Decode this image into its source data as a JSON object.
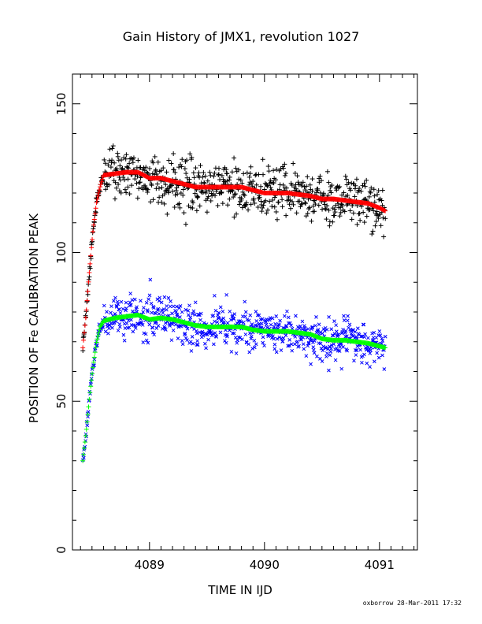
{
  "chart_data": {
    "type": "scatter",
    "title": "Gain History of JMX1, revolution 1027",
    "xlabel": "TIME IN IJD",
    "ylabel": "POSITION OF Fe CALIBRATION PEAK",
    "xlim": [
      4088.33,
      4091.33
    ],
    "ylim": [
      0,
      160
    ],
    "xticks": [
      4089,
      4090,
      4091
    ],
    "xtick_labels": [
      "4089",
      "4090",
      "4091"
    ],
    "yticks": [
      0,
      50,
      100,
      150
    ],
    "ytick_labels": [
      "0",
      "50",
      "100",
      "150"
    ],
    "grid": false,
    "credit": "oxborrow 28-Mar-2011 17:32",
    "series": [
      {
        "marker": "+",
        "color": "#000000",
        "description_role": "upper peak data",
        "trend": [
          [
            4088.42,
            68
          ],
          [
            4088.45,
            80
          ],
          [
            4088.48,
            95
          ],
          [
            4088.51,
            108
          ],
          [
            4088.54,
            117
          ],
          [
            4088.57,
            122
          ],
          [
            4088.6,
            126
          ],
          [
            4088.7,
            126.5
          ],
          [
            4088.8,
            127
          ],
          [
            4088.9,
            127
          ],
          [
            4089.0,
            125
          ],
          [
            4089.1,
            125
          ],
          [
            4089.2,
            124
          ],
          [
            4089.3,
            123
          ],
          [
            4089.4,
            122
          ],
          [
            4089.5,
            122
          ],
          [
            4089.6,
            122
          ],
          [
            4089.7,
            122
          ],
          [
            4089.8,
            122
          ],
          [
            4089.9,
            121
          ],
          [
            4090.0,
            120
          ],
          [
            4090.1,
            120
          ],
          [
            4090.2,
            120
          ],
          [
            4090.3,
            119.5
          ],
          [
            4090.4,
            119
          ],
          [
            4090.5,
            118
          ],
          [
            4090.6,
            118
          ],
          [
            4090.7,
            117.5
          ],
          [
            4090.8,
            117
          ],
          [
            4090.9,
            116.5
          ],
          [
            4091.0,
            115
          ],
          [
            4091.05,
            114
          ]
        ],
        "scatter_sd": 4
      },
      {
        "marker": "+",
        "color": "#ff0000",
        "description_role": "upper peak fit",
        "points": [
          [
            4088.42,
            68
          ],
          [
            4088.45,
            80
          ],
          [
            4088.48,
            95
          ],
          [
            4088.51,
            108
          ],
          [
            4088.54,
            117
          ],
          [
            4088.57,
            122
          ],
          [
            4088.6,
            126
          ],
          [
            4088.7,
            126.5
          ],
          [
            4088.8,
            127
          ],
          [
            4088.9,
            127
          ],
          [
            4089.0,
            125
          ],
          [
            4089.1,
            125
          ],
          [
            4089.2,
            124
          ],
          [
            4089.3,
            123
          ],
          [
            4089.4,
            122
          ],
          [
            4089.5,
            122
          ],
          [
            4089.6,
            122
          ],
          [
            4089.7,
            122
          ],
          [
            4089.8,
            122
          ],
          [
            4089.9,
            121
          ],
          [
            4090.0,
            120
          ],
          [
            4090.1,
            120
          ],
          [
            4090.2,
            120
          ],
          [
            4090.3,
            119.5
          ],
          [
            4090.4,
            119
          ],
          [
            4090.5,
            118
          ],
          [
            4090.6,
            118
          ],
          [
            4090.7,
            117.5
          ],
          [
            4090.8,
            117
          ],
          [
            4090.9,
            116.5
          ],
          [
            4091.0,
            115
          ],
          [
            4091.05,
            114
          ]
        ]
      },
      {
        "marker": "x",
        "color": "#0000ff",
        "description_role": "lower peak data",
        "trend": [
          [
            4088.42,
            30
          ],
          [
            4088.45,
            40
          ],
          [
            4088.48,
            52
          ],
          [
            4088.51,
            62
          ],
          [
            4088.54,
            70
          ],
          [
            4088.57,
            75
          ],
          [
            4088.6,
            77
          ],
          [
            4088.7,
            78
          ],
          [
            4088.8,
            78.5
          ],
          [
            4088.9,
            79
          ],
          [
            4089.0,
            77.5
          ],
          [
            4089.1,
            78
          ],
          [
            4089.2,
            77.5
          ],
          [
            4089.3,
            76.5
          ],
          [
            4089.4,
            75.5
          ],
          [
            4089.5,
            75
          ],
          [
            4089.6,
            75
          ],
          [
            4089.7,
            75
          ],
          [
            4089.8,
            75
          ],
          [
            4089.9,
            74
          ],
          [
            4090.0,
            73.5
          ],
          [
            4090.1,
            73.5
          ],
          [
            4090.2,
            73.5
          ],
          [
            4090.3,
            73
          ],
          [
            4090.4,
            72.5
          ],
          [
            4090.5,
            71
          ],
          [
            4090.6,
            70.5
          ],
          [
            4090.7,
            70.5
          ],
          [
            4090.8,
            70
          ],
          [
            4090.9,
            69.5
          ],
          [
            4091.0,
            68.5
          ],
          [
            4091.05,
            68
          ]
        ],
        "scatter_sd": 3.5
      },
      {
        "marker": "+",
        "color": "#00ff00",
        "description_role": "lower peak fit",
        "points": [
          [
            4088.42,
            30
          ],
          [
            4088.45,
            40
          ],
          [
            4088.48,
            52
          ],
          [
            4088.51,
            62
          ],
          [
            4088.54,
            70
          ],
          [
            4088.57,
            75
          ],
          [
            4088.6,
            77
          ],
          [
            4088.7,
            78
          ],
          [
            4088.8,
            78.5
          ],
          [
            4088.9,
            79
          ],
          [
            4089.0,
            77.5
          ],
          [
            4089.1,
            78
          ],
          [
            4089.2,
            77.5
          ],
          [
            4089.3,
            76.5
          ],
          [
            4089.4,
            75.5
          ],
          [
            4089.5,
            75
          ],
          [
            4089.6,
            75
          ],
          [
            4089.7,
            75
          ],
          [
            4089.8,
            75
          ],
          [
            4089.9,
            74
          ],
          [
            4090.0,
            73.5
          ],
          [
            4090.1,
            73.5
          ],
          [
            4090.2,
            73.5
          ],
          [
            4090.3,
            73
          ],
          [
            4090.4,
            72.5
          ],
          [
            4090.5,
            71
          ],
          [
            4090.6,
            70.5
          ],
          [
            4090.7,
            70.5
          ],
          [
            4090.8,
            70
          ],
          [
            4090.9,
            69.5
          ],
          [
            4091.0,
            68.5
          ],
          [
            4091.05,
            68
          ]
        ]
      }
    ]
  }
}
